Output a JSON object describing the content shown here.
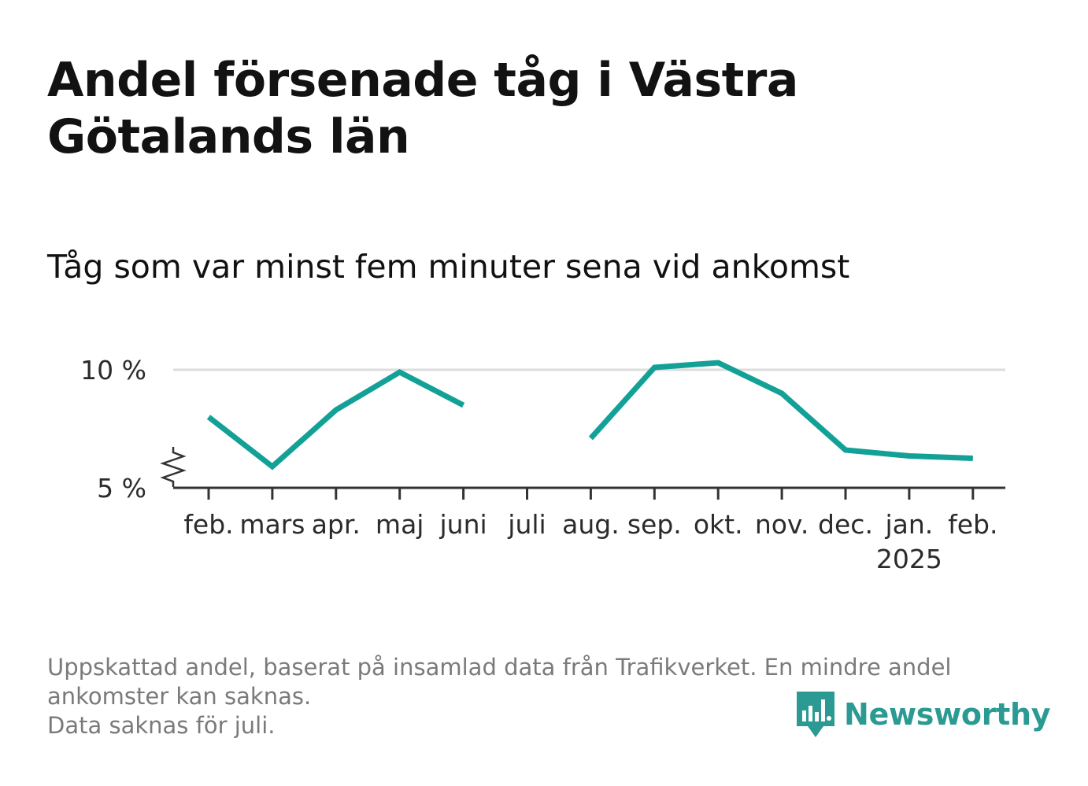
{
  "title": "Andel försenade tåg i Västra Götalands län",
  "subtitle": "Tåg som var minst fem minuter sena vid ankomst",
  "footer": {
    "line1": "Uppskattad andel, baserat på insamlad data från Trafikverket. En mindre andel ankomster kan saknas.",
    "line2": "Data saknas för juli."
  },
  "brand": {
    "name": "Newsworthy",
    "color": "#2a9a92",
    "icon": "newsworthy-logo-icon"
  },
  "chart_data": {
    "type": "line",
    "categories": [
      "feb.",
      "mars",
      "apr.",
      "maj",
      "juni",
      "juli",
      "aug.",
      "sep.",
      "okt.",
      "nov.",
      "dec.",
      "jan.",
      "feb."
    ],
    "year_labels": [
      "",
      "",
      "",
      "",
      "",
      "",
      "",
      "",
      "",
      "",
      "",
      "2025",
      ""
    ],
    "series": [
      {
        "values": [
          8.0,
          5.9,
          8.3,
          9.9,
          8.5,
          null,
          7.1,
          10.1,
          10.3,
          9.0,
          6.6,
          6.35,
          6.25
        ],
        "color": "#13a197"
      }
    ],
    "yticks": [
      5,
      10
    ],
    "ytick_labels": [
      "5 %",
      "10 %"
    ],
    "ylim": [
      5,
      10.8
    ],
    "axis_break": true,
    "grid": true
  }
}
